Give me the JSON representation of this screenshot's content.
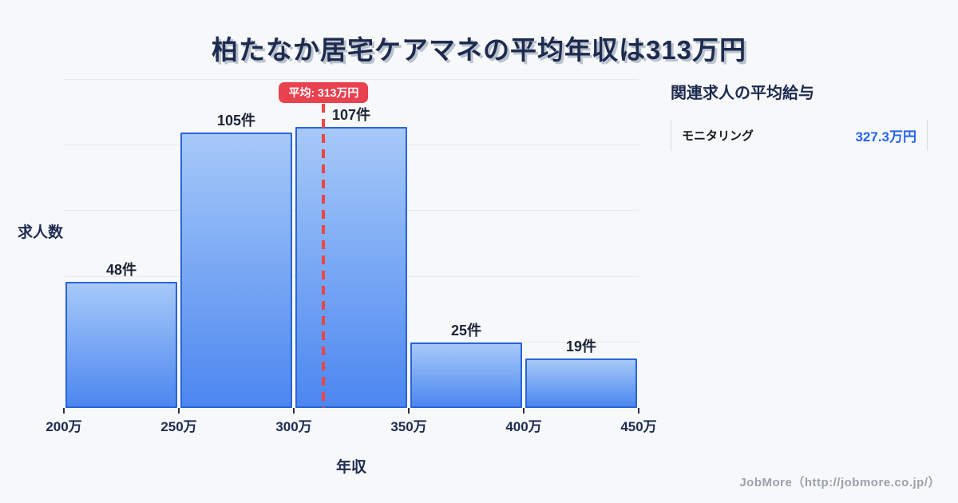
{
  "title": "柏たなか居宅ケアマネの平均年収は313万円",
  "chart_data": {
    "type": "bar",
    "title": "柏たなか居宅ケアマネの平均年収は313万円",
    "xlabel": "年収",
    "ylabel": "求人数",
    "categories": [
      "200万-250万",
      "250万-300万",
      "300万-350万",
      "350万-400万",
      "400万-450万"
    ],
    "values": [
      48,
      105,
      107,
      25,
      19
    ],
    "bar_labels": [
      "48件",
      "105件",
      "107件",
      "25件",
      "19件"
    ],
    "x_tick_labels": [
      "200万",
      "250万",
      "300万",
      "350万",
      "400万",
      "450万"
    ],
    "xlim": [
      200,
      450
    ],
    "ylim": [
      0,
      125
    ],
    "gridline_step": 25,
    "grid": true,
    "legend_position": "none",
    "average": {
      "value": 313,
      "label": "平均: 313万円"
    },
    "colors": {
      "bar_fill_top": "#a6c9f8",
      "bar_fill_bottom": "#4c87f0",
      "bar_border": "#2a64d9",
      "average_accent": "#e8414f",
      "average_line": "#ee4545",
      "title_navy": "#1d2b4f",
      "background": "#f7f8fa"
    }
  },
  "side_panel": {
    "heading": "関連求人の平均給与",
    "rows": [
      {
        "label": "モニタリング",
        "value": "327.3万円"
      }
    ],
    "value_color": "#2563eb"
  },
  "footer": {
    "credit": "JobMore（http://jobmore.co.jp/）"
  }
}
